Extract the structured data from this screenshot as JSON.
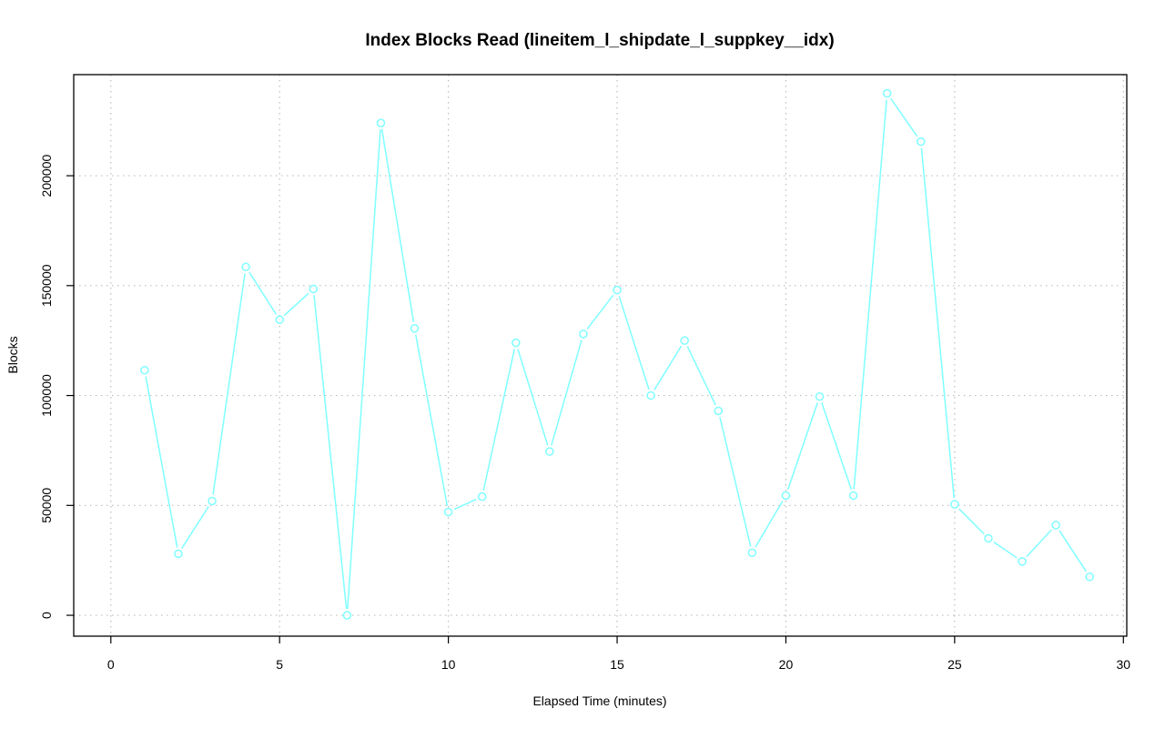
{
  "chart_data": {
    "type": "line",
    "title": "Index Blocks Read (lineitem_l_shipdate_l_suppkey__idx)",
    "xlabel": "Elapsed Time (minutes)",
    "ylabel": "Blocks",
    "xlim": [
      -1.1,
      30.1
    ],
    "ylim": [
      -9500,
      246000
    ],
    "x_ticks": [
      0,
      5,
      10,
      15,
      20,
      25,
      30
    ],
    "y_ticks": [
      0,
      50000,
      100000,
      150000,
      200000
    ],
    "grid": true,
    "legend": "none",
    "series": [
      {
        "color": "#7fffff",
        "marker": "open-circle",
        "x": [
          1,
          2,
          3,
          4,
          5,
          6,
          7,
          8,
          9,
          10,
          11,
          12,
          13,
          14,
          15,
          16,
          17,
          18,
          19,
          20,
          21,
          22,
          23,
          24,
          25,
          26,
          27,
          28,
          29
        ],
        "values": [
          111500,
          28000,
          52000,
          158500,
          134500,
          148500,
          0,
          224000,
          130500,
          47000,
          54000,
          124000,
          74500,
          128000,
          148000,
          100000,
          125000,
          93000,
          28500,
          54500,
          99500,
          54500,
          237500,
          215500,
          50500,
          35000,
          24500,
          41000,
          17500
        ]
      }
    ]
  }
}
